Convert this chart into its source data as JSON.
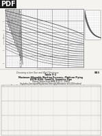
{
  "page_bg": "#f5f3f0",
  "pdf_label": "PDF",
  "pdf_bg": "#1a1a1a",
  "pdf_color": "#ffffff",
  "title_line1": "Choosing a Line Size and Wall Thickness",
  "title_page": "803",
  "table_title1": "Table 9-2",
  "table_title2": "Maximum Allowable Working Pressure—Platform Piping",
  "table_title3": "ASTM A106, Grade B, Seamless Pipe",
  "table_title4": "(Stress Values from ANSI B 31.3—1980)",
  "table_title5": "(Includes Corrosion/Mechanical Strength Allowance of 0.050 inches)",
  "chart_bg": "#ffffff",
  "chart_grid_color": "#aaaaaa",
  "chart_line_color": "#555555",
  "inset_bg": "#f0f0f0"
}
